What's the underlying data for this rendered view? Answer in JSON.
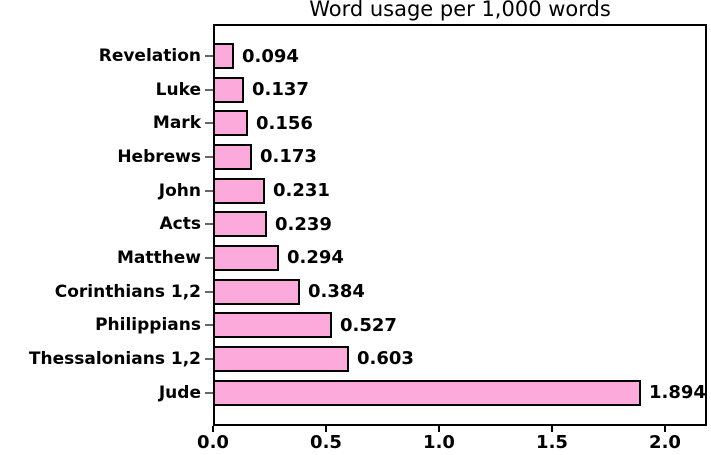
{
  "chart_data": {
    "type": "bar",
    "orientation": "horizontal",
    "title": "Word usage per 1,000 words",
    "categories": [
      "Revelation",
      "Luke",
      "Mark",
      "Hebrews",
      "John",
      "Acts",
      "Matthew",
      "Corinthians 1,2",
      "Philippians",
      "Thessalonians 1,2",
      "Jude"
    ],
    "values": [
      0.094,
      0.137,
      0.156,
      0.173,
      0.231,
      0.239,
      0.294,
      0.384,
      0.527,
      0.603,
      1.894
    ],
    "value_labels": [
      "0.094",
      "0.137",
      "0.156",
      "0.173",
      "0.231",
      "0.239",
      "0.294",
      "0.384",
      "0.527",
      "0.603",
      "1.894"
    ],
    "xlabel": "",
    "ylabel": "",
    "x_ticks": [
      "0.0",
      "0.5",
      "1.0",
      "1.5",
      "2.0"
    ],
    "x_tick_values": [
      0.0,
      0.5,
      1.0,
      1.5,
      2.0
    ],
    "xlim": [
      0,
      2.186
    ],
    "grid": false,
    "legend": "none",
    "bar_color": "#FCAADB",
    "bar_border_color": "#000000",
    "text_color": "#000000",
    "background": "#FFFFFF"
  }
}
